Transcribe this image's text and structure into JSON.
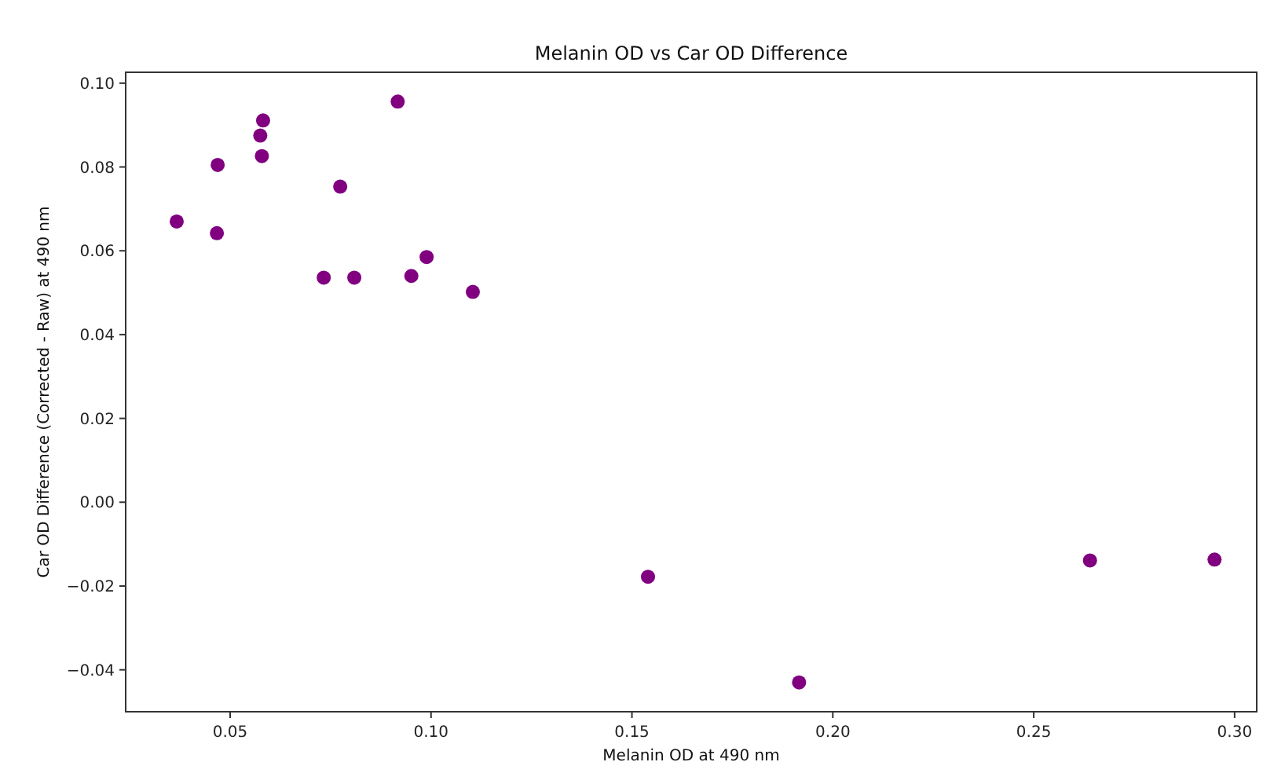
{
  "chart_data": {
    "type": "scatter",
    "title": "Melanin OD vs Car OD Difference",
    "xlabel": "Melanin OD at 490 nm",
    "ylabel": "Car OD Difference (Corrected - Raw) at 490 nm",
    "xlim": [
      0.024,
      0.3055
    ],
    "xticks": [
      {
        "value": 0.05,
        "label": "0.05"
      },
      {
        "value": 0.1,
        "label": "0.10"
      },
      {
        "value": 0.15,
        "label": "0.15"
      },
      {
        "value": 0.2,
        "label": "0.20"
      },
      {
        "value": 0.25,
        "label": "0.25"
      },
      {
        "value": 0.3,
        "label": "0.30"
      }
    ],
    "ylim": [
      -0.05,
      0.1026
    ],
    "yticks": [
      {
        "value": -0.04,
        "label": "−0.04"
      },
      {
        "value": -0.02,
        "label": "−0.02"
      },
      {
        "value": 0,
        "label": "0.00"
      },
      {
        "value": 0.02,
        "label": "0.02"
      },
      {
        "value": 0.04,
        "label": "0.04"
      },
      {
        "value": 0.06,
        "label": "0.06"
      },
      {
        "value": 0.08,
        "label": "0.08"
      },
      {
        "value": 0.1,
        "label": "0.10"
      }
    ],
    "marker": "circle",
    "series": [
      {
        "color": "#800080",
        "x": [
          0.0367,
          0.0469,
          0.0467,
          0.0582,
          0.0575,
          0.0579,
          0.0774,
          0.0917,
          0.0733,
          0.0809,
          0.0951,
          0.0989,
          0.1104,
          0.154,
          0.1916,
          0.264,
          0.295
        ],
        "values": [
          0.067,
          0.0805,
          0.0642,
          0.0911,
          0.0875,
          0.0826,
          0.0753,
          0.0956,
          0.0536,
          0.0536,
          0.054,
          0.0585,
          0.0502,
          -0.0178,
          -0.043,
          -0.0139,
          -0.0137
        ]
      }
    ]
  }
}
